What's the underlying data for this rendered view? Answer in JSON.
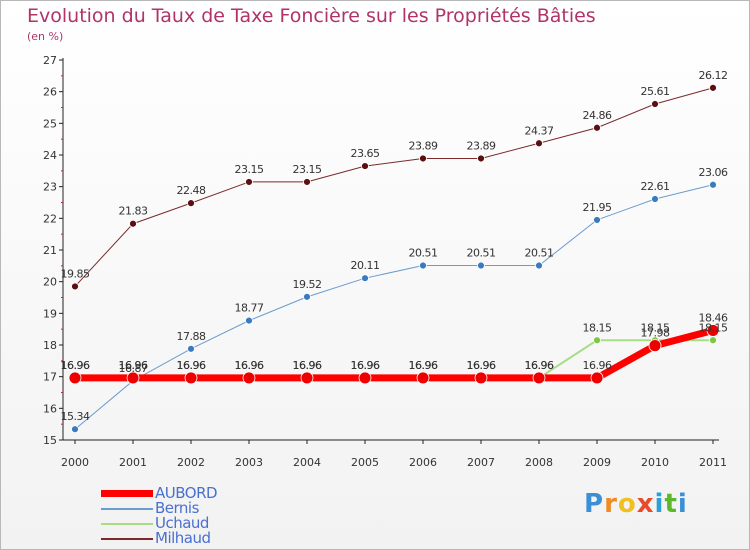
{
  "title": "Evolution du Taux de Taxe Foncière sur les Propriétés Bâties",
  "unit": "(en %)",
  "brand": {
    "text": "Proxiti",
    "letter_colors": [
      "#3a8fd6",
      "#f08a24",
      "#f0c020",
      "#e84a2a",
      "#2aa0d6",
      "#5cb82a",
      "#3a8fd6"
    ]
  },
  "chart_data": {
    "type": "line",
    "x": [
      "2000",
      "2001",
      "2002",
      "2003",
      "2004",
      "2005",
      "2006",
      "2007",
      "2008",
      "2009",
      "2010",
      "2011"
    ],
    "ylim": [
      15,
      27
    ],
    "yticks": [
      15,
      16,
      17,
      18,
      19,
      20,
      21,
      22,
      23,
      24,
      25,
      26,
      27
    ],
    "grid": false,
    "legend_position": "bottom-left",
    "series": [
      {
        "name": "Milhaud",
        "color": "#7a2a2a",
        "marker_color": "#5a1010",
        "line_width": 1,
        "values": [
          19.85,
          21.83,
          22.48,
          23.15,
          23.15,
          23.65,
          23.89,
          23.89,
          24.37,
          24.86,
          25.61,
          26.12
        ],
        "labels": [
          "19.85",
          "21.83",
          "22.48",
          "23.15",
          "23.15",
          "23.65",
          "23.89",
          "23.89",
          "24.37",
          "24.86",
          "25.61",
          "26.12"
        ]
      },
      {
        "name": "Bernis",
        "color": "#6a9ccc",
        "marker_color": "#3a7bc0",
        "line_width": 1,
        "values": [
          15.34,
          16.87,
          17.88,
          18.77,
          19.52,
          20.11,
          20.51,
          20.51,
          20.51,
          21.95,
          22.61,
          23.06
        ],
        "labels": [
          "15.34",
          "16.87",
          "17.88",
          "18.77",
          "19.52",
          "20.11",
          "20.51",
          "20.51",
          "20.51",
          "21.95",
          "22.61",
          "23.06"
        ]
      },
      {
        "name": "Uchaud",
        "color": "#a8dd88",
        "marker_color": "#7cc840",
        "line_width": 2,
        "values": [
          16.96,
          16.96,
          16.96,
          16.96,
          16.96,
          16.96,
          16.96,
          16.96,
          16.96,
          18.15,
          18.15,
          18.15
        ],
        "labels": [
          "16.96",
          "16.96",
          "16.96",
          "16.96",
          "16.96",
          "16.96",
          "16.96",
          "16.96",
          "16.96",
          "18.15",
          "18.15",
          "18.15"
        ]
      },
      {
        "name": "AUBORD",
        "color": "#ff0000",
        "marker_color": "#ee0000",
        "line_width": 7,
        "values": [
          16.96,
          16.96,
          16.96,
          16.96,
          16.96,
          16.96,
          16.96,
          16.96,
          16.96,
          16.96,
          17.98,
          18.46
        ],
        "labels": [
          "16.96",
          "16.96",
          "16.96",
          "16.96",
          "16.96",
          "16.96",
          "16.96",
          "16.96",
          "16.96",
          "16.96",
          "17.98",
          "18.46"
        ]
      }
    ],
    "legend_order": [
      "AUBORD",
      "Bernis",
      "Uchaud",
      "Milhaud"
    ]
  }
}
